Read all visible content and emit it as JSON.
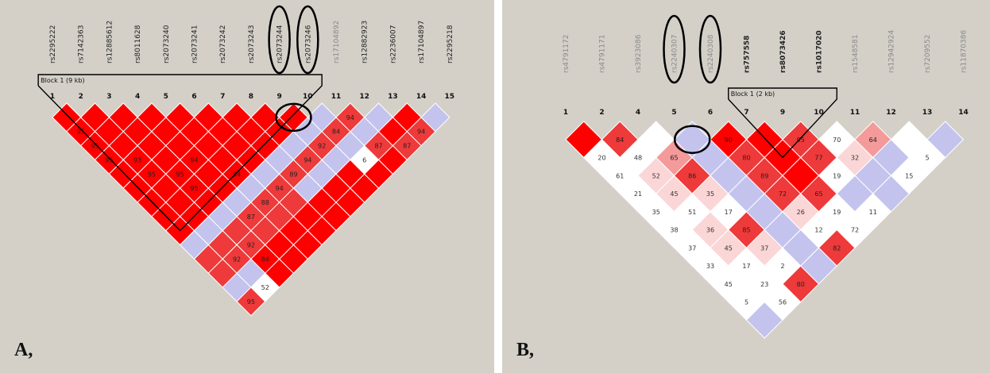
{
  "colors": {
    "background": "#d4d0c8",
    "strong_ld": "#ff0000",
    "high_ld": "#ee3a3a",
    "medium_ld": "#f49a9a",
    "low_ld": "#fbd6d6",
    "no_ld": "#ffffff",
    "blue": "#c3c3ee",
    "outline": "#000000"
  },
  "panelA": {
    "label": "A,",
    "block_label": "Block 1 (9 kb)",
    "snps": [
      "rs2295222",
      "rs7142363",
      "rs12885612",
      "rs8011628",
      "rs2073240",
      "rs2073241",
      "rs2073242",
      "rs2073243",
      "rs2073244",
      "rs2073246",
      "rs17104892",
      "rs12882923",
      "rs2236007",
      "rs17104897",
      "rs2295218"
    ],
    "indices": [
      "1",
      "2",
      "3",
      "4",
      "5",
      "6",
      "7",
      "8",
      "9",
      "10",
      "11",
      "12",
      "13",
      "14",
      "15"
    ],
    "grayed_snp": 10,
    "circled_snps": [
      8,
      9
    ],
    "block_range": [
      0,
      9
    ],
    "circle_cell": [
      8,
      9
    ]
  },
  "panelB": {
    "label": "B,",
    "block_label": "Block 1 (2 kb)",
    "snps": [
      "rs4791172",
      "rs4791171",
      "rs3923086",
      "rs2240307",
      "rs2240308",
      "rs757558",
      "rs8073426",
      "rs1017020",
      "rs1548581",
      "rs12942924",
      "rs7209552",
      "rs11870386"
    ],
    "indices": [
      "1",
      "2",
      "4",
      "5",
      "6",
      "7",
      "9",
      "10",
      "11",
      "12",
      "13",
      "14"
    ],
    "bold_snps": [
      5,
      6,
      7
    ],
    "circled_snps": [
      3,
      4
    ],
    "block_range": [
      5,
      7
    ],
    "circle_cell": [
      3,
      4
    ]
  }
}
